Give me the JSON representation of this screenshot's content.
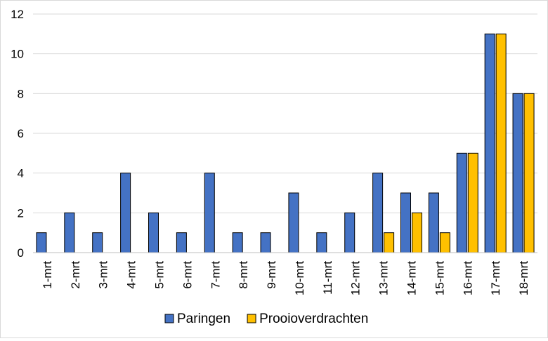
{
  "chart_data": {
    "type": "bar",
    "title": "",
    "xlabel": "",
    "ylabel": "",
    "ylim": [
      0,
      12
    ],
    "yticks": [
      0,
      2,
      4,
      6,
      8,
      10,
      12
    ],
    "grid": true,
    "legend_position": "bottom",
    "categories": [
      "1-mrt",
      "2-mrt",
      "3-mrt",
      "4-mrt",
      "5-mrt",
      "6-mrt",
      "7-mrt",
      "8-mrt",
      "9-mrt",
      "10-mrt",
      "11-mrt",
      "12-mrt",
      "13-mrt",
      "14-mrt",
      "15-mrt",
      "16-mrt",
      "17-mrt",
      "18-mrt"
    ],
    "series": [
      {
        "name": "Paringen",
        "color": "#4472c4",
        "values": [
          1,
          2,
          1,
          4,
          2,
          1,
          4,
          1,
          1,
          3,
          1,
          2,
          4,
          3,
          3,
          5,
          11,
          8
        ]
      },
      {
        "name": "Prooioverdrachten",
        "color": "#ffc000",
        "values": [
          0,
          0,
          0,
          0,
          0,
          0,
          0,
          0,
          0,
          0,
          0,
          0,
          1,
          2,
          1,
          5,
          11,
          8
        ]
      }
    ]
  }
}
